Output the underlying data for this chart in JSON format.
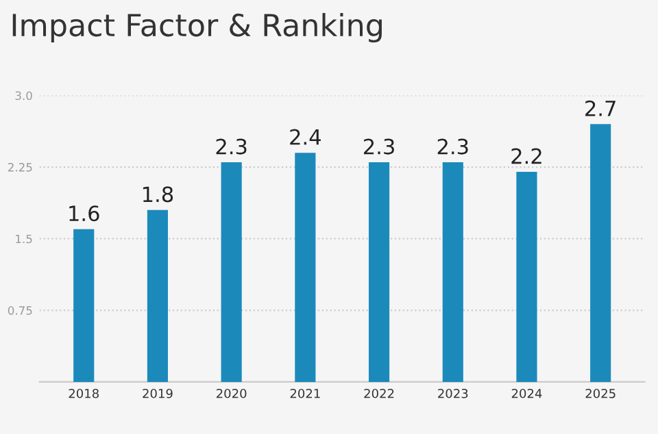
{
  "chart_data": {
    "type": "bar",
    "title": "Impact Factor & Ranking",
    "categories": [
      "2018",
      "2019",
      "2020",
      "2021",
      "2022",
      "2023",
      "2024",
      "2025"
    ],
    "values": [
      1.6,
      1.8,
      2.3,
      2.4,
      2.3,
      2.3,
      2.2,
      2.7
    ],
    "color": "#1b8abb",
    "ylim": [
      0,
      3.0
    ],
    "yticks": [
      {
        "value": 0,
        "label": null
      },
      0.75,
      1.5,
      2.25,
      {
        "value": 3.0,
        "label": "3.0"
      }
    ],
    "grid": "y",
    "data_labels": true
  }
}
